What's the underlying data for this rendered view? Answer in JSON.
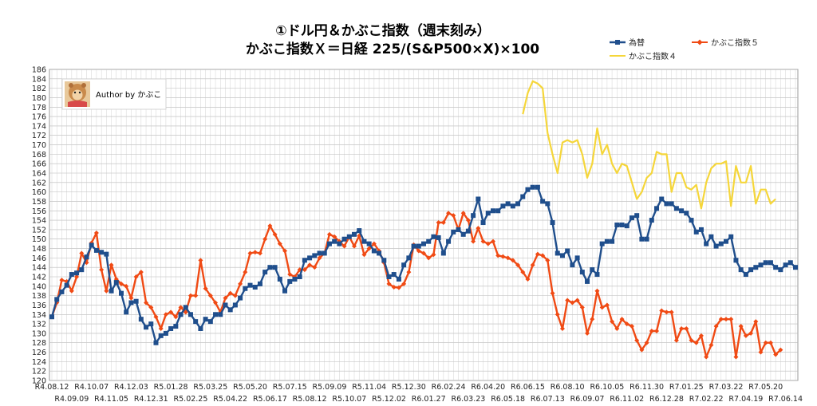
{
  "chart_data": {
    "type": "line",
    "title": "①ドル円＆かぶこ指数（週末刻み）",
    "subtitle": "かぶこ指数Ｘ＝日経 225/(S&P500×X)×100",
    "author": "Author by かぶこ",
    "ylim": [
      120,
      186
    ],
    "y_step": 2,
    "grid": true,
    "legend_position": "top-right",
    "x_tick_labels_row1": [
      "R4.08.12",
      "R4.10.07",
      "R4.12.03",
      "R5.01.28",
      "R5.03.25",
      "R5.05.20",
      "R5.07.15",
      "R5.09.09",
      "R5.11.04",
      "R5.12.30",
      "R6.02.24",
      "R6.04.20",
      "R6.06.15",
      "R6.08.10",
      "R6.10.05",
      "R6.11.30",
      "R7.01.25",
      "R7.03.22",
      "R7.05.20"
    ],
    "x_tick_labels_row2": [
      "R4.09.09",
      "R4.11.05",
      "R4.12.31",
      "R5.02.25",
      "R5.04.22",
      "R5.06.17",
      "R5.08.12",
      "R5.10.07",
      "R5.12.02",
      "R6.01.27",
      "R6.03.23",
      "R6.05.18",
      "R6.07.13",
      "R6.09.07",
      "R6.11.02",
      "R6.12.28",
      "R7.02.22",
      "R7.04.19",
      "R7.06.14"
    ],
    "series": [
      {
        "name": "為替",
        "color": "#1f4e8c",
        "marker": "square",
        "start_index": 0,
        "values": [
          133.5,
          137.2,
          138.8,
          140.2,
          142.5,
          142.8,
          143.5,
          146.2,
          148.7,
          147.6,
          147.2,
          146.8,
          139.0,
          140.8,
          138.5,
          134.5,
          136.5,
          136.8,
          133.0,
          131.3,
          132.0,
          128.0,
          129.5,
          130.0,
          131.0,
          131.5,
          134.0,
          135.5,
          134.0,
          132.5,
          131.0,
          133.0,
          132.5,
          134.0,
          134.0,
          136.0,
          135.0,
          136.0,
          137.5,
          139.5,
          140.2,
          139.8,
          140.5,
          143.0,
          144.0,
          144.0,
          141.5,
          139.0,
          141.0,
          141.5,
          142.0,
          145.5,
          146.0,
          146.5,
          147.0,
          147.0,
          149.0,
          149.5,
          149.0,
          150.0,
          150.5,
          151.0,
          151.8,
          149.5,
          149.0,
          147.5,
          147.0,
          145.5,
          142.0,
          142.5,
          141.5,
          144.5,
          146.0,
          148.5,
          148.5,
          149.0,
          149.5,
          150.5,
          150.3,
          147.0,
          149.5,
          151.5,
          152.0,
          151.0,
          151.7,
          155.0,
          158.5,
          153.5,
          155.5,
          156.0,
          156.0,
          157.0,
          157.5,
          157.0,
          157.5,
          159.0,
          160.5,
          161.0,
          161.0,
          158.0,
          157.5,
          153.5,
          147.0,
          146.5,
          147.5,
          144.5,
          146.0,
          143.0,
          141.0,
          143.5,
          142.5,
          149.0,
          149.5,
          149.5,
          153.0,
          153.0,
          152.8,
          154.5,
          155.0,
          150.0,
          150.0,
          154.0,
          156.5,
          158.5,
          157.5,
          157.5,
          156.5,
          156.0,
          155.5,
          154.0,
          151.5,
          152.0,
          149.0,
          150.5,
          148.5,
          149.0,
          149.5,
          150.5,
          145.5,
          143.5,
          142.5,
          143.5,
          144.0,
          144.5,
          145.0,
          145.0,
          144.0,
          143.5,
          144.5,
          145.0,
          144.0
        ]
      },
      {
        "name": "かぶこ指数４",
        "color": "#f5d63a",
        "marker": "none",
        "start_index": 95,
        "values": [
          176.5,
          181.0,
          183.5,
          183.0,
          182.0,
          172.5,
          168.0,
          164.0,
          170.5,
          171.0,
          170.5,
          171.0,
          168.0,
          163.0,
          166.0,
          173.5,
          168.0,
          170.0,
          166.0,
          164.0,
          166.0,
          165.5,
          162.0,
          158.5,
          160.0,
          163.0,
          164.0,
          168.5,
          168.0,
          168.0,
          160.0,
          164.0,
          164.0,
          161.0,
          160.5,
          161.5,
          156.5,
          162.0,
          165.0,
          166.0,
          166.0,
          166.5,
          157.0,
          165.5,
          162.0,
          162.0,
          165.5,
          157.5,
          160.5,
          160.5,
          157.5,
          158.5
        ]
      },
      {
        "name": "かぶこ指数５",
        "color": "#f04a14",
        "marker": "diamond",
        "start_index": 0,
        "values": [
          133.5,
          136.5,
          141.3,
          141.0,
          139.0,
          142.0,
          147.0,
          145.0,
          149.2,
          151.3,
          143.5,
          139.0,
          144.5,
          141.5,
          140.5,
          140.0,
          137.5,
          142.0,
          143.0,
          136.5,
          135.5,
          133.5,
          131.0,
          134.0,
          134.5,
          133.5,
          135.5,
          134.5,
          138.0,
          138.0,
          145.5,
          139.5,
          138.0,
          136.5,
          134.5,
          137.5,
          138.5,
          138.0,
          140.5,
          143.0,
          147.0,
          147.2,
          147.0,
          150.0,
          152.8,
          151.0,
          149.0,
          147.5,
          142.5,
          142.0,
          143.5,
          143.5,
          144.5,
          144.0,
          146.0,
          147.0,
          151.0,
          150.5,
          149.5,
          148.5,
          150.5,
          148.5,
          150.7,
          146.7,
          148.0,
          149.0,
          147.5,
          145.0,
          140.5,
          139.8,
          139.7,
          140.5,
          143.0,
          148.8,
          147.5,
          147.0,
          146.0,
          146.7,
          153.5,
          153.5,
          155.5,
          155.0,
          152.0,
          155.5,
          154.0,
          149.5,
          152.3,
          149.5,
          149.0,
          149.5,
          146.5,
          146.3,
          146.0,
          145.5,
          144.5,
          143.0,
          141.5,
          144.5,
          146.8,
          146.5,
          145.5,
          138.5,
          134.0,
          131.0,
          137.0,
          136.5,
          137.0,
          135.5,
          130.0,
          133.0,
          139.0,
          135.5,
          136.0,
          132.5,
          131.0,
          133.0,
          132.0,
          131.5,
          128.5,
          126.5,
          128.0,
          130.5,
          130.5,
          134.8,
          134.5,
          134.5,
          128.5,
          131.0,
          131.0,
          128.5,
          128.0,
          129.5,
          125.0,
          127.5,
          131.5,
          133.0,
          133.0,
          133.0,
          125.0,
          131.5,
          129.5,
          130.0,
          132.5,
          126.0,
          128.0,
          128.0,
          125.5,
          126.5
        ]
      }
    ]
  }
}
